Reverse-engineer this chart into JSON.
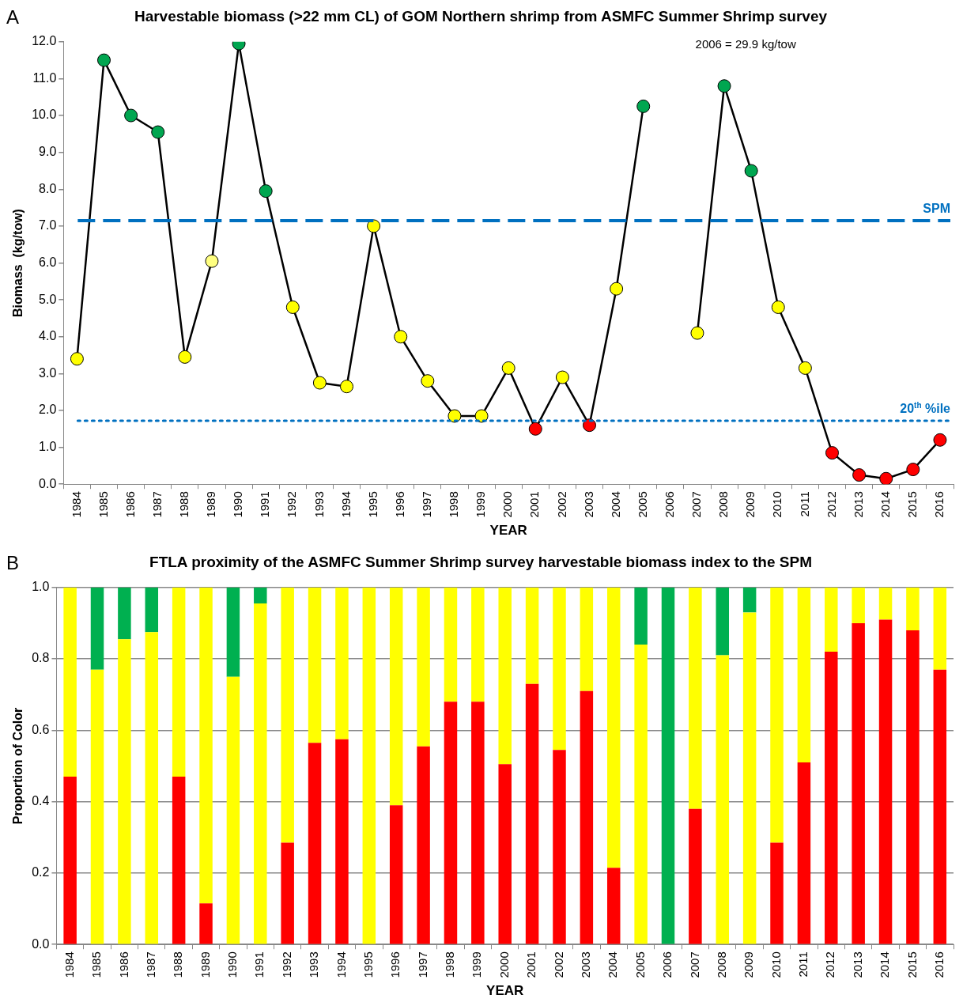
{
  "chart_data": [
    {
      "type": "line",
      "title": "Harvestable biomass (>22 mm CL) of GOM Northern shrimp from ASMFC Summer Shrimp survey",
      "xlabel": "YEAR",
      "ylabel": "Biomass  (kg/tow)",
      "categories": [
        "1984",
        "1985",
        "1986",
        "1987",
        "1988",
        "1989",
        "1990",
        "1991",
        "1992",
        "1993",
        "1994",
        "1995",
        "1996",
        "1997",
        "1998",
        "1999",
        "2000",
        "2001",
        "2002",
        "2003",
        "2004",
        "2005",
        "2006",
        "2007",
        "2008",
        "2009",
        "2010",
        "2011",
        "2012",
        "2013",
        "2014",
        "2015",
        "2016"
      ],
      "series": [
        {
          "color": "#000000",
          "values": [
            3.4,
            11.5,
            10.0,
            9.55,
            3.45,
            6.05,
            11.95,
            7.95,
            4.8,
            2.75,
            2.65,
            7.0,
            4.0,
            2.8,
            1.85,
            1.85,
            3.15,
            1.5,
            2.9,
            1.6,
            5.3,
            10.25,
            null,
            4.1,
            10.8,
            8.5,
            4.8,
            3.15,
            0.85,
            0.25,
            0.15,
            0.4,
            1.2
          ],
          "colors": [
            "#ffff00",
            "#00a650",
            "#00a650",
            "#00a650",
            "#ffff00",
            "#ffff80",
            "#00a650",
            "#00a650",
            "#ffff00",
            "#ffff00",
            "#ffff00",
            "#ffff00",
            "#ffff00",
            "#ffff00",
            "#ffff00",
            "#ffff00",
            "#ffff00",
            "#ff0000",
            "#ffff00",
            "#ff0000",
            "#ffff00",
            "#00a650",
            "#00a650",
            "#ffff00",
            "#00a650",
            "#00a650",
            "#ffff00",
            "#ffff00",
            "#ff0000",
            "#ff0000",
            "#ff0000",
            "#ff0000",
            "#ff0000"
          ]
        }
      ],
      "ylim": [
        0,
        12
      ],
      "yticks": [
        {
          "value": 0,
          "label": "0.0"
        },
        {
          "value": 1,
          "label": "1.0"
        },
        {
          "value": 2,
          "label": "2.0"
        },
        {
          "value": 3,
          "label": "3.0"
        },
        {
          "value": 4,
          "label": "4.0"
        },
        {
          "value": 5,
          "label": "5.0"
        },
        {
          "value": 6,
          "label": "6.0"
        },
        {
          "value": 7,
          "label": "7.0"
        },
        {
          "value": 8,
          "label": "8.0"
        },
        {
          "value": 9,
          "label": "9.0"
        },
        {
          "value": 10,
          "label": "10.0"
        },
        {
          "value": 11,
          "label": "11.0"
        },
        {
          "value": 12,
          "label": "12.0"
        }
      ],
      "marker": "circle",
      "grid": false,
      "legend": false,
      "ref_lines": [
        {
          "axis": "y",
          "value": 7.15,
          "label": "SPM",
          "color": "#0070c0",
          "line_style": "dashed"
        },
        {
          "axis": "y",
          "value": 1.72,
          "label": "20$^{th}$ %ile",
          "color": "#0070c0",
          "line_style": "dotted"
        }
      ],
      "annotations": [
        "A",
        "2006 = 29.9 kg/tow"
      ]
    },
    {
      "type": "bar",
      "title": "FTLA proximity of the ASMFC Summer Shrimp survey harvestable biomass index to the SPM",
      "xlabel": "YEAR",
      "ylabel": "Proportion of Color",
      "categories": [
        "1984",
        "1985",
        "1986",
        "1987",
        "1988",
        "1989",
        "1990",
        "1991",
        "1992",
        "1993",
        "1994",
        "1995",
        "1996",
        "1997",
        "1998",
        "1999",
        "2000",
        "2001",
        "2002",
        "2003",
        "2004",
        "2005",
        "2006",
        "2007",
        "2008",
        "2009",
        "2010",
        "2011",
        "2012",
        "2013",
        "2014",
        "2015",
        "2016"
      ],
      "stacked": true,
      "series": [
        {
          "color": "#ff0000",
          "values": [
            0.47,
            0,
            0,
            0,
            0.47,
            0.115,
            0,
            0,
            0.285,
            0.565,
            0.575,
            0,
            0.39,
            0.555,
            0.68,
            0.68,
            0.505,
            0.73,
            0.545,
            0.71,
            0.215,
            0,
            0,
            0.38,
            0,
            0,
            0.285,
            0.51,
            0.82,
            0.9,
            0.91,
            0.88,
            0.77
          ]
        },
        {
          "color": "#ffff00",
          "values": [
            0.53,
            0.77,
            0.855,
            0.875,
            0.53,
            0.885,
            0.75,
            0.955,
            0.715,
            0.435,
            0.425,
            1,
            0.61,
            0.445,
            0.32,
            0.32,
            0.495,
            0.27,
            0.455,
            0.29,
            0.785,
            0.84,
            0,
            0.62,
            0.81,
            0.93,
            0.715,
            0.49,
            0.18,
            0.1,
            0.09,
            0.12,
            0.23
          ]
        },
        {
          "color": "#00b050",
          "values": [
            0,
            0.23,
            0.145,
            0.125,
            0,
            0,
            0.25,
            0.045,
            0,
            0,
            0,
            0,
            0,
            0,
            0,
            0,
            0,
            0,
            0,
            0,
            0,
            0.16,
            1,
            0,
            0.19,
            0.07,
            0,
            0,
            0,
            0,
            0,
            0,
            0
          ]
        }
      ],
      "ylim": [
        0,
        1
      ],
      "yticks": [
        {
          "value": 0,
          "label": "0.0"
        },
        {
          "value": 0.2,
          "label": "0.2"
        },
        {
          "value": 0.4,
          "label": "0.4"
        },
        {
          "value": 0.6,
          "label": "0.6"
        },
        {
          "value": 0.8,
          "label": "0.8"
        },
        {
          "value": 1,
          "label": "1.0"
        }
      ],
      "grid": "y",
      "legend": false,
      "annotations": [
        "B"
      ]
    }
  ]
}
